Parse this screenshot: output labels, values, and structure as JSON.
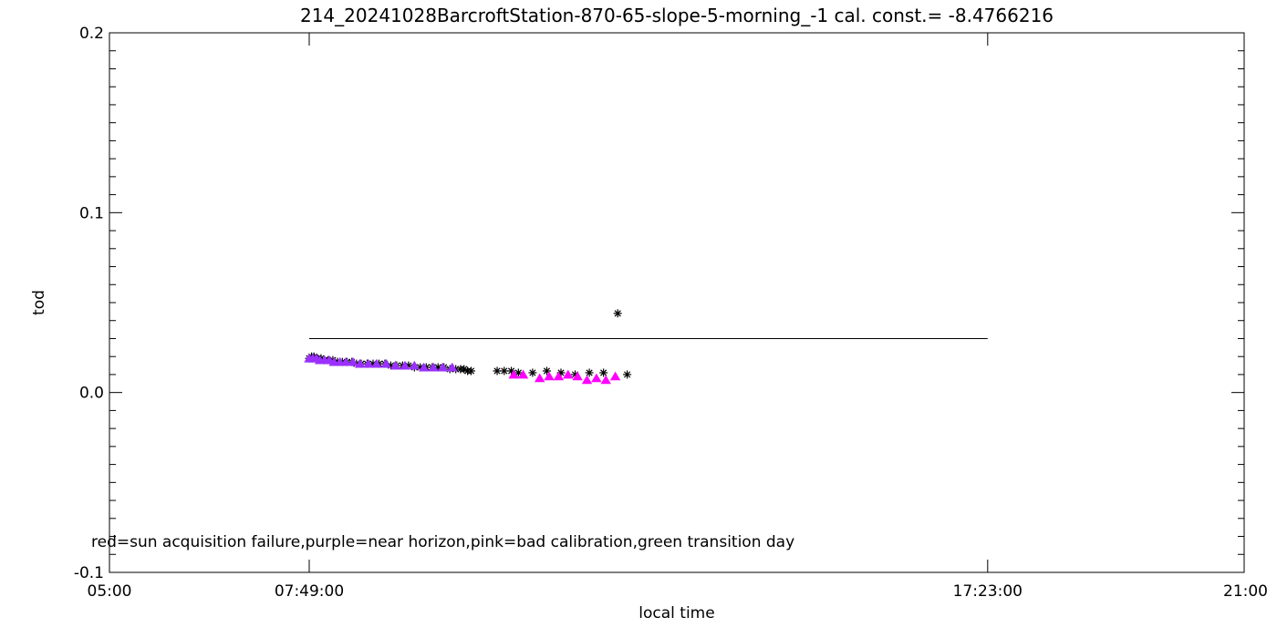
{
  "chart_data": {
    "type": "scatter",
    "title": "214_20241028BarcroftStation-870-65-slope-5-morning_-1 cal. const.= -8.4766216",
    "xlabel": "local time",
    "ylabel": "tod",
    "xlim": [
      "05:00",
      "21:00"
    ],
    "ylim": [
      -0.1,
      0.2
    ],
    "x_ticks": [
      "05:00",
      "07:49:00",
      "17:23:00",
      "21:00"
    ],
    "y_ticks": [
      -0.1,
      0.0,
      0.1,
      0.2
    ],
    "y_tick_labels": [
      "-0.1",
      "0.0",
      "0.1",
      "0.2"
    ],
    "reference_line": {
      "x_start": "07:49",
      "x_end": "17:23",
      "y": 0.03
    },
    "note": "red=sun acquisition failure,purple=near horizon,pink=bad calibration,green transition day",
    "colors": {
      "normal": "#000000",
      "purple": "#9b30ff",
      "pink": "#ff00ff",
      "axis": "#000000"
    },
    "series": [
      {
        "category": "normal",
        "marker": "asterisk",
        "x": [
          "07:49",
          "07:51",
          "07:53",
          "07:56",
          "07:59",
          "08:02",
          "08:05",
          "08:09",
          "08:13",
          "08:17",
          "08:21",
          "08:25",
          "08:29",
          "08:33",
          "08:38",
          "08:43",
          "08:48",
          "08:53",
          "08:58",
          "09:03",
          "09:08",
          "09:13",
          "09:18",
          "09:23",
          "09:28",
          "09:33",
          "09:38",
          "09:43",
          "09:48",
          "09:53",
          "09:57",
          "10:00",
          "10:03",
          "10:06",
          "10:28",
          "10:34",
          "10:40",
          "10:46",
          "10:58",
          "11:10",
          "11:22",
          "11:34",
          "11:46",
          "11:58",
          "12:10",
          "12:18"
        ],
        "y": [
          0.019,
          0.02,
          0.02,
          0.019,
          0.019,
          0.018,
          0.018,
          0.018,
          0.017,
          0.017,
          0.017,
          0.017,
          0.016,
          0.016,
          0.016,
          0.016,
          0.016,
          0.016,
          0.015,
          0.015,
          0.015,
          0.015,
          0.014,
          0.014,
          0.014,
          0.014,
          0.014,
          0.014,
          0.013,
          0.013,
          0.013,
          0.013,
          0.012,
          0.012,
          0.012,
          0.012,
          0.012,
          0.011,
          0.011,
          0.012,
          0.011,
          0.01,
          0.011,
          0.011,
          0.044,
          0.01
        ]
      },
      {
        "category": "purple",
        "marker": "triangle",
        "x": [
          "07:49",
          "07:52",
          "07:55",
          "07:58",
          "08:02",
          "08:06",
          "08:10",
          "08:15",
          "08:20",
          "08:26",
          "08:32",
          "08:39",
          "08:46",
          "08:54",
          "09:02",
          "09:10",
          "09:18",
          "09:26",
          "09:34",
          "09:42",
          "09:50"
        ],
        "y": [
          0.019,
          0.019,
          0.019,
          0.018,
          0.018,
          0.018,
          0.017,
          0.017,
          0.017,
          0.017,
          0.016,
          0.016,
          0.016,
          0.016,
          0.015,
          0.015,
          0.015,
          0.014,
          0.014,
          0.014,
          0.014
        ]
      },
      {
        "category": "pink",
        "marker": "triangle",
        "x": [
          "10:42",
          "10:50",
          "11:04",
          "11:12",
          "11:20",
          "11:28",
          "11:36",
          "11:44",
          "11:52",
          "12:00",
          "12:08"
        ],
        "y": [
          0.01,
          0.01,
          0.008,
          0.009,
          0.009,
          0.01,
          0.009,
          0.007,
          0.008,
          0.007,
          0.009
        ]
      }
    ]
  }
}
